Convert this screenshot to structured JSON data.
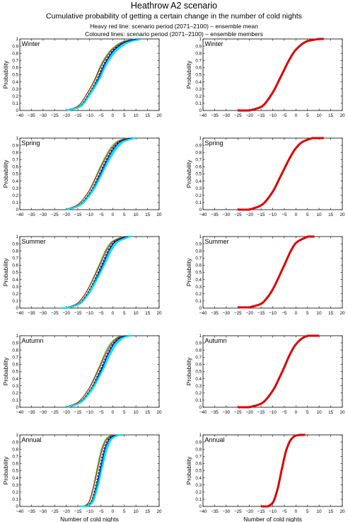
{
  "header": {
    "title": "Heathrow A2 scenario",
    "subtitle": "Cumulative probability of getting a certain change in the number of cold nights",
    "note_red": "Heavy red line: scenario period (2071–2100) – ensemble mean",
    "note_colour": "Coloured lines: scenario period (2071–2100) – ensemble members"
  },
  "axes": {
    "xlabel": "Number of cold nights",
    "ylabel": "Probability",
    "xlim": [
      -40,
      20
    ],
    "ylim": [
      0,
      1
    ],
    "xticks": [
      -40,
      -35,
      -30,
      -25,
      -20,
      -15,
      -10,
      -5,
      0,
      5,
      10,
      15,
      20
    ],
    "yticks": [
      0,
      0.1,
      0.2,
      0.3,
      0.4,
      0.5,
      0.6,
      0.7,
      0.8,
      0.9,
      1
    ],
    "ytick_labels": [
      "0",
      "0.1",
      "0.2",
      "0.3",
      "0.4",
      "0.5",
      "0.6",
      "0.7",
      "0.8",
      "0.9",
      "1"
    ]
  },
  "colors": {
    "mean": "#dd0000",
    "members": [
      "#00e5ee",
      "#22cc22",
      "#000000",
      "#dd0000",
      "#0000cc",
      "#00e5ee"
    ]
  },
  "chart_data": [
    {
      "type": "line",
      "panel": "Winter",
      "column": "members",
      "x_range": [
        -20,
        12
      ],
      "series": [
        {
          "x": [
            -20,
            -15,
            -10,
            -7,
            -5,
            -3,
            0,
            5,
            10
          ],
          "y": [
            0.0,
            0.05,
            0.27,
            0.45,
            0.6,
            0.72,
            0.85,
            0.96,
            1.0
          ]
        }
      ]
    },
    {
      "type": "line",
      "panel": "Winter",
      "column": "mean",
      "x_range": [
        -25,
        12
      ],
      "series": [
        {
          "x": [
            -20,
            -15,
            -10,
            -7,
            -5,
            -3,
            0,
            5,
            10
          ],
          "y": [
            0.0,
            0.05,
            0.25,
            0.44,
            0.57,
            0.7,
            0.85,
            0.97,
            1.0
          ]
        }
      ]
    },
    {
      "type": "line",
      "panel": "Spring",
      "column": "members",
      "x_range": [
        -20,
        10
      ],
      "series": [
        {
          "x": [
            -20,
            -15,
            -10,
            -7,
            -5,
            -3,
            0,
            3,
            7
          ],
          "y": [
            0.0,
            0.06,
            0.25,
            0.44,
            0.58,
            0.71,
            0.87,
            0.96,
            1.0
          ]
        }
      ]
    },
    {
      "type": "line",
      "panel": "Spring",
      "column": "mean",
      "x_range": [
        -25,
        12
      ],
      "series": [
        {
          "x": [
            -20,
            -15,
            -10,
            -7,
            -5,
            -3,
            0,
            3,
            7
          ],
          "y": [
            0.0,
            0.06,
            0.25,
            0.44,
            0.57,
            0.7,
            0.86,
            0.95,
            1.0
          ]
        }
      ]
    },
    {
      "type": "line",
      "panel": "Summer",
      "column": "members",
      "x_range": [
        -22,
        8
      ],
      "series": [
        {
          "x": [
            -20,
            -15,
            -12,
            -10,
            -8,
            -5,
            -2,
            0,
            5
          ],
          "y": [
            0.0,
            0.06,
            0.17,
            0.28,
            0.41,
            0.62,
            0.83,
            0.92,
            1.0
          ]
        }
      ]
    },
    {
      "type": "line",
      "panel": "Summer",
      "column": "mean",
      "x_range": [
        -25,
        8
      ],
      "series": [
        {
          "x": [
            -20,
            -15,
            -12,
            -10,
            -8,
            -5,
            -2,
            0,
            5
          ],
          "y": [
            0.01,
            0.06,
            0.16,
            0.26,
            0.39,
            0.6,
            0.81,
            0.91,
            1.0
          ]
        }
      ]
    },
    {
      "type": "line",
      "panel": "Autumn",
      "column": "members",
      "x_range": [
        -20,
        8
      ],
      "series": [
        {
          "x": [
            -20,
            -15,
            -10,
            -7,
            -5,
            -3,
            0,
            3,
            5
          ],
          "y": [
            0.0,
            0.06,
            0.25,
            0.44,
            0.58,
            0.73,
            0.9,
            0.98,
            1.0
          ]
        }
      ]
    },
    {
      "type": "line",
      "panel": "Autumn",
      "column": "mean",
      "x_range": [
        -25,
        10
      ],
      "series": [
        {
          "x": [
            -20,
            -15,
            -10,
            -7,
            -5,
            -3,
            0,
            3,
            5
          ],
          "y": [
            0.0,
            0.05,
            0.23,
            0.42,
            0.56,
            0.71,
            0.88,
            0.97,
            1.0
          ]
        }
      ]
    },
    {
      "type": "line",
      "panel": "Annual",
      "column": "members",
      "x_range": [
        -14,
        4
      ],
      "series": [
        {
          "x": [
            -12,
            -10,
            -8,
            -6,
            -4,
            -2,
            0,
            2
          ],
          "y": [
            0.0,
            0.05,
            0.25,
            0.55,
            0.82,
            0.95,
            0.99,
            1.0
          ]
        }
      ]
    },
    {
      "type": "line",
      "panel": "Annual",
      "column": "mean",
      "x_range": [
        -15,
        4
      ],
      "series": [
        {
          "x": [
            -12,
            -10,
            -8,
            -6,
            -4,
            -2,
            0,
            2
          ],
          "y": [
            0.0,
            0.05,
            0.23,
            0.53,
            0.8,
            0.94,
            0.99,
            1.0
          ]
        }
      ]
    }
  ]
}
